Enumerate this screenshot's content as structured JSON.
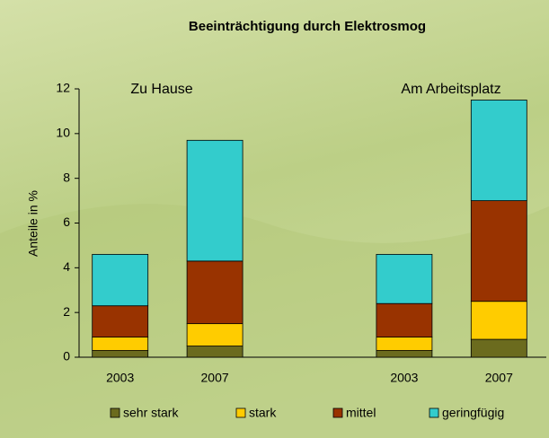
{
  "chart_data": {
    "type": "stacked_bar",
    "title": "Beeinträchtigung durch Elektrosmog",
    "y_label": "Anteile in %",
    "annotations": [
      "Zu Hause",
      "Am Arbeitsplatz"
    ],
    "categories": [
      "2003",
      "2007",
      null,
      "2003",
      "2007"
    ],
    "series": [
      {
        "name": "sehr stark",
        "color": "#6b6b1e",
        "values": [
          0.3,
          0.5,
          null,
          0.3,
          0.8
        ]
      },
      {
        "name": "stark",
        "color": "#ffcc00",
        "values": [
          0.6,
          1.0,
          null,
          0.6,
          1.7
        ]
      },
      {
        "name": "mittel",
        "color": "#993300",
        "values": [
          1.4,
          2.8,
          null,
          1.5,
          4.5
        ]
      },
      {
        "name": "geringfügig",
        "color": "#33cccc",
        "values": [
          2.3,
          5.4,
          null,
          2.2,
          4.5
        ]
      }
    ],
    "ylim": [
      0,
      12
    ],
    "yticks": [
      0,
      2,
      4,
      6,
      8,
      10,
      12
    ]
  }
}
